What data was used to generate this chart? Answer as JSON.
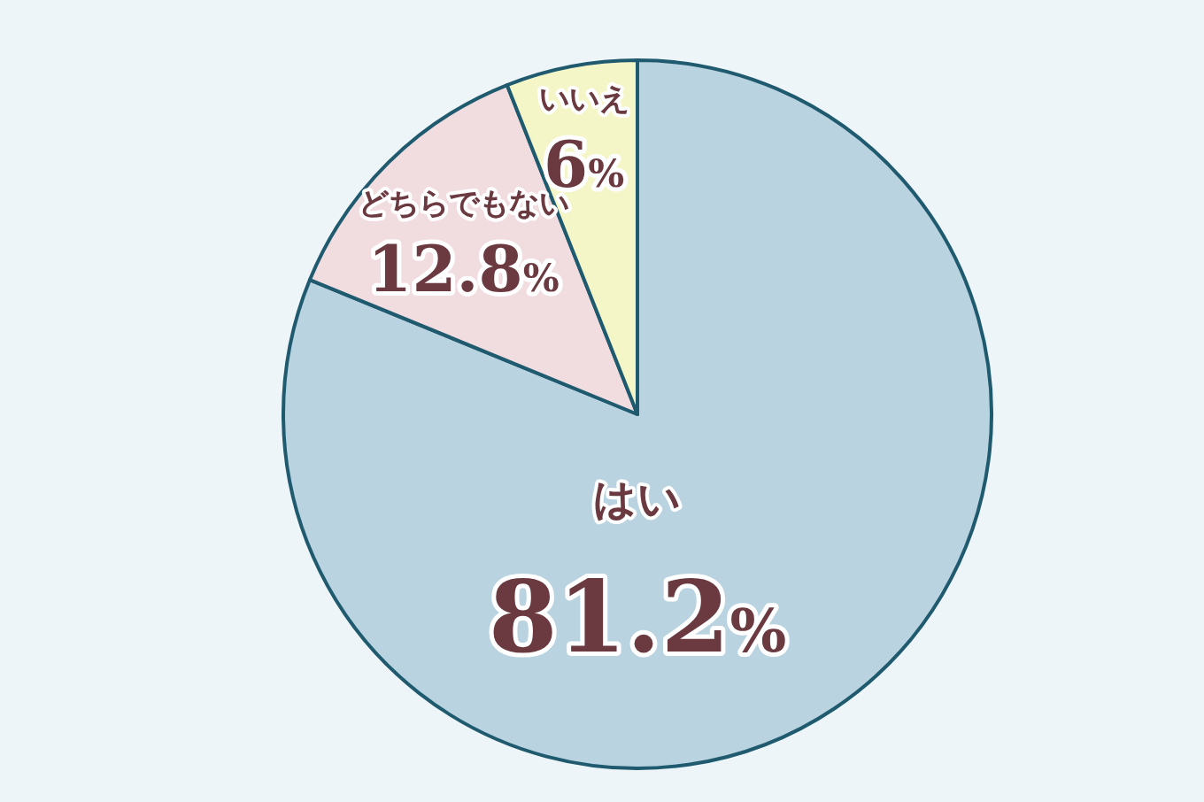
{
  "chart_data": {
    "type": "pie",
    "categories": [
      "はい",
      "どちらでもない",
      "いいえ"
    ],
    "values": [
      81.2,
      12.8,
      6
    ],
    "colors": [
      "#b9d3e1",
      "#f1dce0",
      "#f4f6c8"
    ],
    "value_labels": [
      "81.2%",
      "12.8%",
      "6%"
    ]
  }
}
